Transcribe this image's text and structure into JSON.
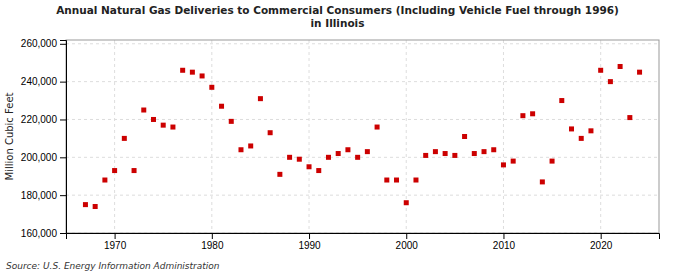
{
  "chart_data": {
    "type": "scatter",
    "title": "Annual Natural Gas Deliveries to Commercial Consumers (Including Vehicle Fuel through 1996)\nin Illinois",
    "ylabel": "Million Cubic Feet",
    "source": "Source: U.S. Energy Information Administration",
    "color": "#cc0000",
    "marker": "square",
    "grid": true,
    "xlim": [
      1965,
      2026
    ],
    "xticks": [
      1970,
      1980,
      1990,
      2000,
      2010,
      2020
    ],
    "ylim": [
      160000,
      262000
    ],
    "yticks": [
      {
        "value": 160000,
        "label": "160,000"
      },
      {
        "value": 180000,
        "label": "180,000"
      },
      {
        "value": 200000,
        "label": "200,000"
      },
      {
        "value": 220000,
        "label": "220,000"
      },
      {
        "value": 240000,
        "label": "240,000"
      },
      {
        "value": 260000,
        "label": "260,000"
      }
    ],
    "x": [
      1967,
      1968,
      1969,
      1970,
      1971,
      1972,
      1973,
      1974,
      1975,
      1976,
      1977,
      1978,
      1979,
      1980,
      1981,
      1982,
      1983,
      1984,
      1985,
      1986,
      1987,
      1988,
      1989,
      1990,
      1991,
      1992,
      1993,
      1994,
      1995,
      1996,
      1997,
      1998,
      1999,
      2000,
      2001,
      2002,
      2003,
      2004,
      2005,
      2006,
      2007,
      2008,
      2009,
      2010,
      2011,
      2012,
      2013,
      2014,
      2015,
      2016,
      2017,
      2018,
      2019,
      2020,
      2021,
      2022,
      2023,
      2024
    ],
    "values": [
      175000,
      174000,
      188000,
      193000,
      210000,
      193000,
      225000,
      220000,
      217000,
      216000,
      246000,
      245000,
      243000,
      237000,
      227000,
      219000,
      204000,
      206000,
      231000,
      213000,
      191000,
      200000,
      199000,
      195000,
      193000,
      200000,
      202000,
      204000,
      200000,
      203000,
      216000,
      188000,
      188000,
      176000,
      188000,
      201000,
      203000,
      202000,
      201000,
      211000,
      202000,
      203000,
      204000,
      196000,
      198000,
      222000,
      223000,
      187000,
      198000,
      230000,
      215000,
      210000,
      214000,
      246000,
      240000,
      248000,
      221000,
      245000
    ]
  }
}
